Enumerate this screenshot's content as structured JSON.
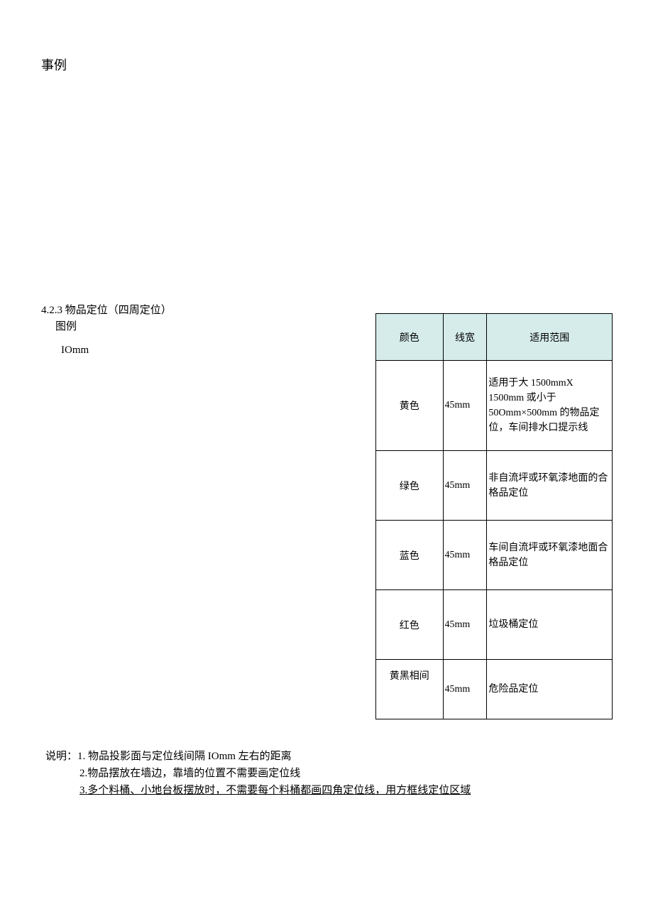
{
  "page": {
    "title": "事例",
    "section_heading": "4.2.3 物品定位（四周定位）",
    "subsection_label": "图例",
    "iomm_label": "IOmm"
  },
  "table": {
    "headers": {
      "color": "颜色",
      "width": "线宽",
      "scope": "适用范围"
    },
    "rows": [
      {
        "color": "黄色",
        "width": "45mm",
        "scope": "适用于大 1500mmX 1500mm 或小于 50Omm×500mm 的物品定位，车间排水口提示线"
      },
      {
        "color": "绿色",
        "width": "45mm",
        "scope": "非自流坪或环氧漆地面的合格品定位"
      },
      {
        "color": "蓝色",
        "width": "45mm",
        "scope": "车间自流坪或环氧漆地面合格品定位"
      },
      {
        "color": "红色",
        "width": "45mm",
        "scope": "垃圾桶定位"
      },
      {
        "color": "黄黑相间",
        "width": "45mm",
        "scope": "危险品定位"
      }
    ]
  },
  "notes": {
    "line1": "说明：1. 物品投影面与定位线间隔 IOmm 左右的距离",
    "line2": "2.物品摆放在墙边，靠墙的位置不需要画定位线",
    "line3": "3.多个料桶、小地台板摆放时，不需要每个料桶都画四角定位线，用方框线定位区域"
  },
  "styling": {
    "header_bg_color": "#d5ecea",
    "border_color": "#000000",
    "text_color": "#000000",
    "background_color": "#ffffff",
    "base_font_size": 15,
    "title_font_size": 18,
    "table_font_size": 14
  }
}
